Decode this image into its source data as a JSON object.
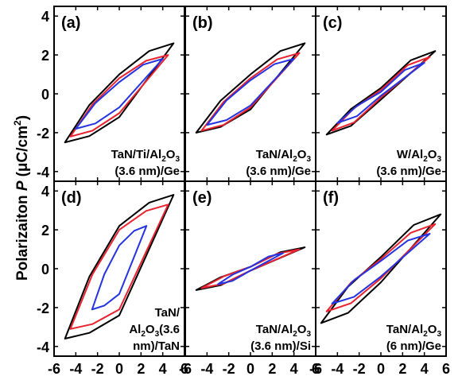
{
  "figure": {
    "ylabel_prefix": "Polarizaiton ",
    "ylabel_var": "P",
    "ylabel_unit": "(μC/cm",
    "ylabel_sup": "2",
    "ylabel_close": ")"
  },
  "colors": {
    "black": "#000000",
    "red": "#e8232f",
    "blue": "#2433e0"
  },
  "chart_data": [
    {
      "type": "line",
      "panel_label": "(a)",
      "label_lines": [
        [
          "TaN/Ti/Al",
          "2",
          "O",
          "3",
          ""
        ],
        [
          "(3.6 nm)/Ge"
        ]
      ],
      "xlim": [
        -6,
        6
      ],
      "ylim": [
        -4.5,
        4.5
      ],
      "xticks": [],
      "yticks": [
        "-4",
        "-2",
        "0",
        "2",
        "4"
      ],
      "loops": [
        {
          "color": "black",
          "vmax": 5.0,
          "p_max": 2.6,
          "p_min": -2.5,
          "p_rem_pos": 1.0,
          "p_rem_neg": -1.2
        },
        {
          "color": "red",
          "vmax": 4.5,
          "p_max": 2.0,
          "p_min": -2.2,
          "p_rem_pos": 0.8,
          "p_rem_neg": -1.0
        },
        {
          "color": "blue",
          "vmax": 4.0,
          "p_max": 1.8,
          "p_min": -1.8,
          "p_rem_pos": 0.6,
          "p_rem_neg": -0.7
        }
      ]
    },
    {
      "type": "line",
      "panel_label": "(b)",
      "label_lines": [
        [
          "TaN/Al",
          "2",
          "O",
          "3",
          ""
        ],
        [
          "(3.6 nm)/Ge"
        ]
      ],
      "xlim": [
        -6,
        6
      ],
      "ylim": [
        -4.5,
        4.5
      ],
      "xticks": [],
      "yticks": [],
      "loops": [
        {
          "color": "black",
          "vmax": 5.0,
          "p_max": 2.6,
          "p_min": -2.0,
          "p_rem_pos": 1.0,
          "p_rem_neg": -0.8
        },
        {
          "color": "red",
          "vmax": 4.5,
          "p_max": 2.1,
          "p_min": -1.9,
          "p_rem_pos": 0.8,
          "p_rem_neg": -0.7
        },
        {
          "color": "blue",
          "vmax": 4.0,
          "p_max": 1.8,
          "p_min": -1.6,
          "p_rem_pos": 0.7,
          "p_rem_neg": -0.6
        }
      ]
    },
    {
      "type": "line",
      "panel_label": "(c)",
      "label_lines": [
        [
          "W/Al",
          "2",
          "O",
          "3",
          ""
        ],
        [
          "(3.6 nm)/Ge"
        ]
      ],
      "xlim": [
        -6,
        6
      ],
      "ylim": [
        -4.5,
        4.5
      ],
      "xticks": [],
      "yticks": [],
      "loops": [
        {
          "color": "black",
          "vmax": 5.0,
          "p_max": 2.2,
          "p_min": -2.1,
          "p_rem_pos": 0.3,
          "p_rem_neg": -0.3
        },
        {
          "color": "red",
          "vmax": 4.5,
          "p_max": 1.9,
          "p_min": -1.9,
          "p_rem_pos": 0.2,
          "p_rem_neg": -0.2
        },
        {
          "color": "blue",
          "vmax": 4.0,
          "p_max": 1.6,
          "p_min": -1.5,
          "p_rem_pos": 0.1,
          "p_rem_neg": -0.1
        }
      ]
    },
    {
      "type": "line",
      "panel_label": "(d)",
      "label_lines": [
        [
          "TaN/"
        ],
        [
          "Al",
          "2",
          "O",
          "3",
          "(3.6"
        ],
        [
          "nm)/TaN"
        ]
      ],
      "xlim": [
        -6,
        6
      ],
      "ylim": [
        -4.5,
        4.5
      ],
      "xticks": [
        "-6",
        "-4",
        "-2",
        "0",
        "2",
        "4",
        "6"
      ],
      "yticks": [
        "-4",
        "-2",
        "0",
        "2",
        "4"
      ],
      "loops": [
        {
          "color": "black",
          "vmax": 5.0,
          "p_max": 3.8,
          "p_min": -3.6,
          "p_rem_pos": 2.2,
          "p_rem_neg": -2.4
        },
        {
          "color": "red",
          "vmax": 4.5,
          "p_max": 3.3,
          "p_min": -3.1,
          "p_rem_pos": 2.0,
          "p_rem_neg": -2.1
        },
        {
          "color": "blue",
          "vmax": 2.5,
          "p_max": 2.2,
          "p_min": -2.1,
          "p_rem_pos": 1.2,
          "p_rem_neg": -1.3
        }
      ]
    },
    {
      "type": "line",
      "panel_label": "(e)",
      "label_lines": [
        [
          "TaN/Al",
          "2",
          "O",
          "3",
          ""
        ],
        [
          "(3.6 nm)/Si"
        ]
      ],
      "xlim": [
        -6,
        6
      ],
      "ylim": [
        -4.5,
        4.5
      ],
      "xticks": [
        "-6",
        "-4",
        "-2",
        "0",
        "2",
        "4",
        "6"
      ],
      "yticks": [],
      "loops": [
        {
          "color": "black",
          "vmax": 5.0,
          "p_max": 1.1,
          "p_min": -1.1,
          "p_rem_pos": 0.1,
          "p_rem_neg": -0.1
        },
        {
          "color": "red",
          "vmax": 4.5,
          "p_max": 1.0,
          "p_min": -1.0,
          "p_rem_pos": 0.1,
          "p_rem_neg": -0.1
        },
        {
          "color": "blue",
          "vmax": 3.0,
          "p_max": 0.8,
          "p_min": -0.8,
          "p_rem_pos": 0.1,
          "p_rem_neg": -0.1
        }
      ]
    },
    {
      "type": "line",
      "panel_label": "(f)",
      "label_lines": [
        [
          "TaN/Al",
          "2",
          "O",
          "3",
          ""
        ],
        [
          "(6 nm)/Ge"
        ]
      ],
      "xlim": [
        -6,
        6
      ],
      "ylim": [
        -4.5,
        4.5
      ],
      "xticks": [
        "-6",
        "-4",
        "-2",
        "0",
        "2",
        "4",
        "6"
      ],
      "yticks": [],
      "loops": [
        {
          "color": "black",
          "vmax": 5.5,
          "p_max": 2.8,
          "p_min": -2.8,
          "p_rem_pos": 0.6,
          "p_rem_neg": -0.7
        },
        {
          "color": "red",
          "vmax": 5.0,
          "p_max": 2.3,
          "p_min": -2.2,
          "p_rem_pos": 0.5,
          "p_rem_neg": -0.5
        },
        {
          "color": "blue",
          "vmax": 4.5,
          "p_max": 1.8,
          "p_min": -1.8,
          "p_rem_pos": 0.4,
          "p_rem_neg": -0.4
        }
      ]
    }
  ]
}
